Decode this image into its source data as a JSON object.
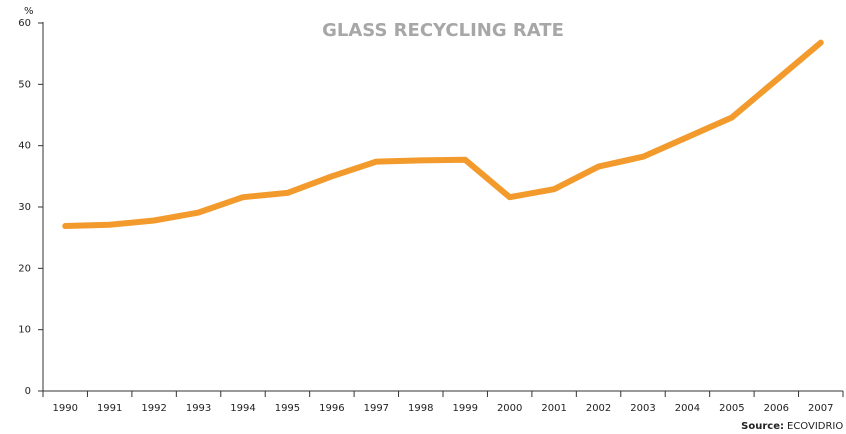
{
  "chart_data": {
    "type": "line",
    "title": "GLASS RECYCLING RATE",
    "y_unit": "%",
    "categories": [
      "1990",
      "1991",
      "1992",
      "1993",
      "1994",
      "1995",
      "1996",
      "1997",
      "1998",
      "1999",
      "2000",
      "2001",
      "2002",
      "2003",
      "2004",
      "2005",
      "2006",
      "2007"
    ],
    "series": [
      {
        "name": "Glass recycling rate",
        "color": "#f39a2c",
        "values": [
          26.9,
          27.1,
          27.8,
          29.1,
          31.6,
          32.3,
          35.0,
          37.4,
          37.6,
          37.7,
          31.6,
          32.9,
          36.6,
          38.2,
          41.4,
          44.6,
          50.7,
          56.8
        ]
      }
    ],
    "ylim": [
      0,
      60
    ],
    "yticks": [
      0,
      10,
      20,
      30,
      40,
      50,
      60
    ],
    "grid": false,
    "legend": false,
    "source_label": "Source:",
    "source": "ECOVIDRIO"
  }
}
